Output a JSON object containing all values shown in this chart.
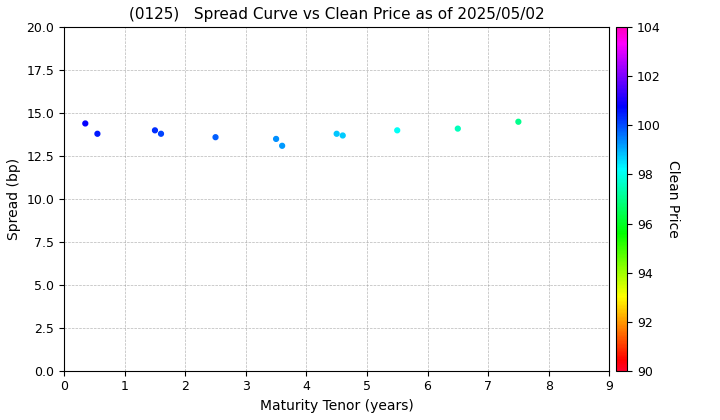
{
  "title": "(0125)   Spread Curve vs Clean Price as of 2025/05/02",
  "xlabel": "Maturity Tenor (years)",
  "ylabel": "Spread (bp)",
  "colorbar_label": "Clean Price",
  "xlim": [
    0,
    9
  ],
  "ylim": [
    0.0,
    20.0
  ],
  "price_min": 90,
  "price_max": 104,
  "points": [
    {
      "tenor": 0.35,
      "spread": 14.4,
      "price": 100.8
    },
    {
      "tenor": 0.55,
      "spread": 13.8,
      "price": 100.5
    },
    {
      "tenor": 1.5,
      "spread": 14.0,
      "price": 100.3
    },
    {
      "tenor": 1.6,
      "spread": 13.8,
      "price": 100.1
    },
    {
      "tenor": 2.5,
      "spread": 13.6,
      "price": 99.8
    },
    {
      "tenor": 3.5,
      "spread": 13.5,
      "price": 99.3
    },
    {
      "tenor": 3.6,
      "spread": 13.1,
      "price": 99.2
    },
    {
      "tenor": 4.5,
      "spread": 13.8,
      "price": 98.8
    },
    {
      "tenor": 4.6,
      "spread": 13.7,
      "price": 98.7
    },
    {
      "tenor": 5.5,
      "spread": 14.0,
      "price": 98.1
    },
    {
      "tenor": 6.5,
      "spread": 14.1,
      "price": 97.5
    },
    {
      "tenor": 7.5,
      "spread": 14.5,
      "price": 97.0
    }
  ],
  "yticks": [
    0.0,
    2.5,
    5.0,
    7.5,
    10.0,
    12.5,
    15.0,
    17.5,
    20.0
  ],
  "xticks": [
    0,
    1,
    2,
    3,
    4,
    5,
    6,
    7,
    8,
    9
  ],
  "colorbar_ticks": [
    90,
    92,
    94,
    96,
    98,
    100,
    102,
    104
  ],
  "title_fontsize": 11,
  "axis_fontsize": 10,
  "tick_fontsize": 9,
  "marker_size": 12,
  "background_color": "#ffffff",
  "grid_color": "#999999",
  "grid_linestyle": "--"
}
